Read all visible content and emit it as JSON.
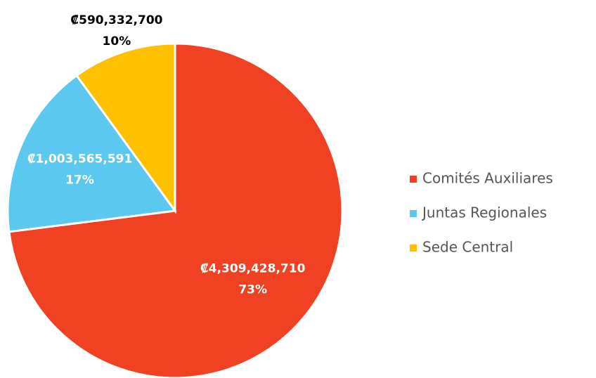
{
  "chart_data": {
    "type": "pie",
    "categories": [
      "Comités Auxiliares",
      "Juntas Regionales",
      "Sede Central"
    ],
    "values": [
      4309428710,
      1003565591,
      590332700
    ],
    "value_labels": [
      "₡4,309,428,710",
      "₡1,003,565,591",
      "₡590,332,700"
    ],
    "percent_labels": [
      "73%",
      "17%",
      "10%"
    ],
    "colors": [
      "#f04123",
      "#5bc8f0",
      "#ffc000"
    ],
    "legend": "right"
  }
}
